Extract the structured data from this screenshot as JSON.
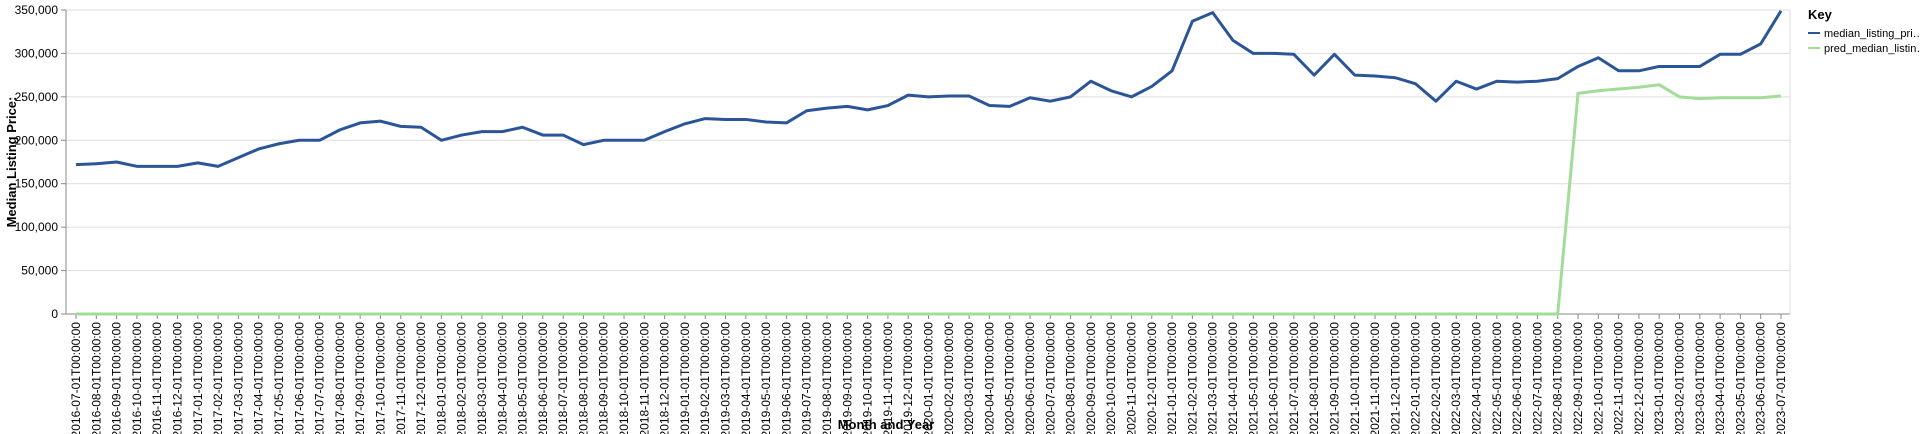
{
  "chart_data": {
    "type": "line",
    "x_label": "Month and Year",
    "y_label": "Median Listing Price:",
    "legend_title": "Key",
    "legend_position": "right",
    "grid": true,
    "categories": [
      "2016-07-01T00:00:00",
      "2016-08-01T00:00:00",
      "2016-09-01T00:00:00",
      "2016-10-01T00:00:00",
      "2016-11-01T00:00:00",
      "2016-12-01T00:00:00",
      "2017-01-01T00:00:00",
      "2017-02-01T00:00:00",
      "2017-03-01T00:00:00",
      "2017-04-01T00:00:00",
      "2017-05-01T00:00:00",
      "2017-06-01T00:00:00",
      "2017-07-01T00:00:00",
      "2017-08-01T00:00:00",
      "2017-09-01T00:00:00",
      "2017-10-01T00:00:00",
      "2017-11-01T00:00:00",
      "2017-12-01T00:00:00",
      "2018-01-01T00:00:00",
      "2018-02-01T00:00:00",
      "2018-03-01T00:00:00",
      "2018-04-01T00:00:00",
      "2018-05-01T00:00:00",
      "2018-06-01T00:00:00",
      "2018-07-01T00:00:00",
      "2018-08-01T00:00:00",
      "2018-09-01T00:00:00",
      "2018-10-01T00:00:00",
      "2018-11-01T00:00:00",
      "2018-12-01T00:00:00",
      "2019-01-01T00:00:00",
      "2019-02-01T00:00:00",
      "2019-03-01T00:00:00",
      "2019-04-01T00:00:00",
      "2019-05-01T00:00:00",
      "2019-06-01T00:00:00",
      "2019-07-01T00:00:00",
      "2019-08-01T00:00:00",
      "2019-09-01T00:00:00",
      "2019-10-01T00:00:00",
      "2019-11-01T00:00:00",
      "2019-12-01T00:00:00",
      "2020-01-01T00:00:00",
      "2020-02-01T00:00:00",
      "2020-03-01T00:00:00",
      "2020-04-01T00:00:00",
      "2020-05-01T00:00:00",
      "2020-06-01T00:00:00",
      "2020-07-01T00:00:00",
      "2020-08-01T00:00:00",
      "2020-09-01T00:00:00",
      "2020-10-01T00:00:00",
      "2020-11-01T00:00:00",
      "2020-12-01T00:00:00",
      "2021-01-01T00:00:00",
      "2021-02-01T00:00:00",
      "2021-03-01T00:00:00",
      "2021-04-01T00:00:00",
      "2021-05-01T00:00:00",
      "2021-06-01T00:00:00",
      "2021-07-01T00:00:00",
      "2021-08-01T00:00:00",
      "2021-09-01T00:00:00",
      "2021-10-01T00:00:00",
      "2021-11-01T00:00:00",
      "2021-12-01T00:00:00",
      "2022-01-01T00:00:00",
      "2022-02-01T00:00:00",
      "2022-03-01T00:00:00",
      "2022-04-01T00:00:00",
      "2022-05-01T00:00:00",
      "2022-06-01T00:00:00",
      "2022-07-01T00:00:00",
      "2022-08-01T00:00:00",
      "2022-09-01T00:00:00",
      "2022-10-01T00:00:00",
      "2022-11-01T00:00:00",
      "2022-12-01T00:00:00",
      "2023-01-01T00:00:00",
      "2023-02-01T00:00:00",
      "2023-03-01T00:00:00",
      "2023-04-01T00:00:00",
      "2023-05-01T00:00:00",
      "2023-06-01T00:00:00",
      "2023-07-01T00:00:00"
    ],
    "series": [
      {
        "name": "median_listing_pri…",
        "color": "#2b5597",
        "values": [
          172000,
          173000,
          175000,
          170000,
          170000,
          170000,
          174000,
          170000,
          180000,
          190000,
          196000,
          200000,
          200000,
          212000,
          220000,
          222000,
          216000,
          215000,
          200000,
          206000,
          210000,
          210000,
          215000,
          206000,
          206000,
          195000,
          200000,
          200000,
          200000,
          210000,
          219000,
          225000,
          224000,
          224000,
          221000,
          220000,
          234000,
          237000,
          239000,
          235000,
          240000,
          252000,
          250000,
          251000,
          251000,
          240000,
          239000,
          249000,
          245000,
          250000,
          268000,
          257000,
          250000,
          262000,
          280000,
          337000,
          347000,
          315000,
          300000,
          300000,
          299000,
          275000,
          299000,
          275000,
          274000,
          272000,
          265000,
          245000,
          268000,
          259000,
          268000,
          267000,
          268000,
          271000,
          285000,
          295000,
          280000,
          280000,
          285000,
          285000,
          285000,
          299000,
          299000,
          311000,
          349000
        ]
      },
      {
        "name": "pred_median_listin…",
        "color": "#a3dc98",
        "values": [
          0,
          0,
          0,
          0,
          0,
          0,
          0,
          0,
          0,
          0,
          0,
          0,
          0,
          0,
          0,
          0,
          0,
          0,
          0,
          0,
          0,
          0,
          0,
          0,
          0,
          0,
          0,
          0,
          0,
          0,
          0,
          0,
          0,
          0,
          0,
          0,
          0,
          0,
          0,
          0,
          0,
          0,
          0,
          0,
          0,
          0,
          0,
          0,
          0,
          0,
          0,
          0,
          0,
          0,
          0,
          0,
          0,
          0,
          0,
          0,
          0,
          0,
          0,
          0,
          0,
          0,
          0,
          0,
          0,
          0,
          0,
          0,
          0,
          0,
          254000,
          257000,
          259000,
          261000,
          264000,
          250000,
          248000,
          249000,
          249000,
          249000,
          251000
        ]
      }
    ],
    "ylim": [
      0,
      350000
    ],
    "yticks": [
      0,
      {
        "value": 50000,
        "label": "50,000"
      },
      {
        "value": 100000,
        "label": "100,000"
      },
      {
        "value": 150000,
        "label": "150,000"
      },
      {
        "value": 200000,
        "label": "200,000"
      },
      {
        "value": 250000,
        "label": "250,000"
      },
      {
        "value": 300000,
        "label": "300,000"
      },
      {
        "value": 350000,
        "label": "350,000"
      }
    ]
  }
}
